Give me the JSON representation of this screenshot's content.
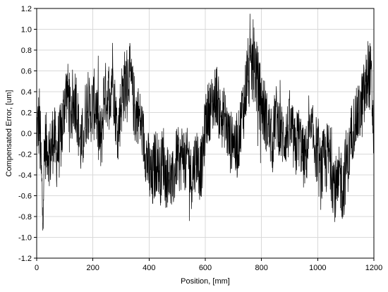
{
  "chart_data": {
    "type": "line",
    "title": "",
    "xlabel": "Position, [mm]",
    "ylabel": "Compensated Error, [um]",
    "xlim": [
      0,
      1200
    ],
    "ylim": [
      -1.2,
      1.2
    ],
    "x_ticks": [
      0,
      200,
      400,
      600,
      800,
      1000,
      1200
    ],
    "y_ticks": [
      -1.2,
      -1.0,
      -0.8,
      -0.6,
      -0.4,
      -0.2,
      0.0,
      0.2,
      0.4,
      0.6,
      0.8,
      1.0,
      1.2
    ],
    "x_tick_labels": [
      "0",
      "200",
      "400",
      "600",
      "800",
      "1000",
      "1200"
    ],
    "y_tick_labels": [
      "-1.2",
      "-1.0",
      "-0.8",
      "-0.6",
      "-0.4",
      "-0.2",
      "0.0",
      "0.2",
      "0.4",
      "0.6",
      "0.8",
      "1.0",
      "1.2"
    ],
    "grid": true,
    "series": [
      {
        "color": "#000000",
        "x": [
          0,
          10,
          20,
          30,
          40,
          50,
          60,
          70,
          80,
          90,
          100,
          110,
          120,
          130,
          140,
          150,
          160,
          170,
          180,
          190,
          200,
          210,
          220,
          230,
          240,
          250,
          260,
          270,
          280,
          290,
          300,
          310,
          320,
          330,
          340,
          350,
          360,
          370,
          380,
          390,
          400,
          410,
          420,
          430,
          440,
          450,
          460,
          470,
          480,
          490,
          500,
          510,
          520,
          530,
          540,
          550,
          560,
          570,
          580,
          590,
          600,
          610,
          620,
          630,
          640,
          650,
          660,
          670,
          680,
          690,
          700,
          710,
          720,
          730,
          740,
          750,
          760,
          770,
          780,
          790,
          800,
          810,
          820,
          830,
          840,
          850,
          860,
          870,
          880,
          890,
          900,
          910,
          920,
          930,
          940,
          950,
          960,
          970,
          980,
          990,
          1000,
          1010,
          1020,
          1030,
          1040,
          1050,
          1060,
          1070,
          1080,
          1090,
          1100,
          1110,
          1120,
          1130,
          1140,
          1150,
          1160,
          1170,
          1180,
          1190,
          1200
        ],
        "y": [
          0.05,
          0.1,
          -0.7,
          -0.1,
          -0.15,
          -0.2,
          0.0,
          -0.2,
          -0.1,
          0.0,
          0.35,
          0.4,
          0.2,
          0.3,
          0.35,
          0.0,
          -0.15,
          0.1,
          0.3,
          0.2,
          0.25,
          0.3,
          0.0,
          -0.1,
          0.4,
          0.35,
          0.4,
          0.6,
          0.2,
          0.0,
          0.3,
          0.45,
          0.5,
          0.6,
          0.4,
          0.2,
          0.2,
          0.1,
          -0.05,
          -0.2,
          -0.35,
          -0.5,
          -0.3,
          -0.25,
          -0.4,
          -0.2,
          -0.45,
          -0.35,
          -0.5,
          -0.4,
          -0.2,
          -0.3,
          -0.15,
          -0.3,
          -0.2,
          -0.45,
          -0.3,
          -0.2,
          -0.35,
          -0.3,
          0.1,
          0.2,
          0.25,
          0.3,
          0.4,
          0.2,
          0.15,
          0.15,
          0.0,
          -0.1,
          0.0,
          -0.2,
          -0.05,
          0.2,
          0.3,
          0.6,
          0.5,
          0.7,
          0.6,
          0.4,
          0.3,
          0.2,
          0.1,
          0.0,
          -0.1,
          0.2,
          0.1,
          0.0,
          -0.05,
          0.0,
          0.05,
          0.0,
          -0.2,
          0.0,
          -0.1,
          -0.25,
          -0.2,
          -0.05,
          0.0,
          -0.1,
          -0.2,
          -0.4,
          -0.3,
          -0.25,
          -0.2,
          -0.35,
          -0.5,
          -0.6,
          -0.4,
          -0.55,
          -0.3,
          -0.25,
          0.0,
          0.1,
          0.15,
          0.2,
          0.3,
          0.4,
          0.6,
          0.5,
          -0.05
        ],
        "y_range_per_x": [
          0.25,
          0.4,
          0.45,
          0.35,
          0.3,
          0.35,
          0.35,
          0.35,
          0.35,
          0.35,
          0.35,
          0.3,
          0.35,
          0.35,
          0.35,
          0.3,
          0.35,
          0.35,
          0.35,
          0.3,
          0.35,
          0.35,
          0.35,
          0.35,
          0.35,
          0.3,
          0.35,
          0.35,
          0.3,
          0.3,
          0.35,
          0.35,
          0.35,
          0.3,
          0.3,
          0.35,
          0.3,
          0.3,
          0.3,
          0.3,
          0.35,
          0.35,
          0.35,
          0.3,
          0.3,
          0.35,
          0.3,
          0.3,
          0.3,
          0.3,
          0.3,
          0.3,
          0.3,
          0.3,
          0.3,
          0.3,
          0.3,
          0.3,
          0.3,
          0.3,
          0.3,
          0.3,
          0.3,
          0.3,
          0.3,
          0.3,
          0.3,
          0.3,
          0.3,
          0.3,
          0.3,
          0.3,
          0.3,
          0.3,
          0.35,
          0.35,
          0.35,
          0.4,
          0.4,
          0.35,
          0.35,
          0.35,
          0.3,
          0.3,
          0.3,
          0.3,
          0.3,
          0.3,
          0.3,
          0.3,
          0.3,
          0.3,
          0.35,
          0.3,
          0.3,
          0.3,
          0.3,
          0.3,
          0.3,
          0.3,
          0.35,
          0.35,
          0.35,
          0.35,
          0.35,
          0.35,
          0.35,
          0.35,
          0.35,
          0.35,
          0.35,
          0.3,
          0.3,
          0.3,
          0.3,
          0.3,
          0.35,
          0.35,
          0.35,
          0.35,
          0.3
        ]
      }
    ]
  }
}
